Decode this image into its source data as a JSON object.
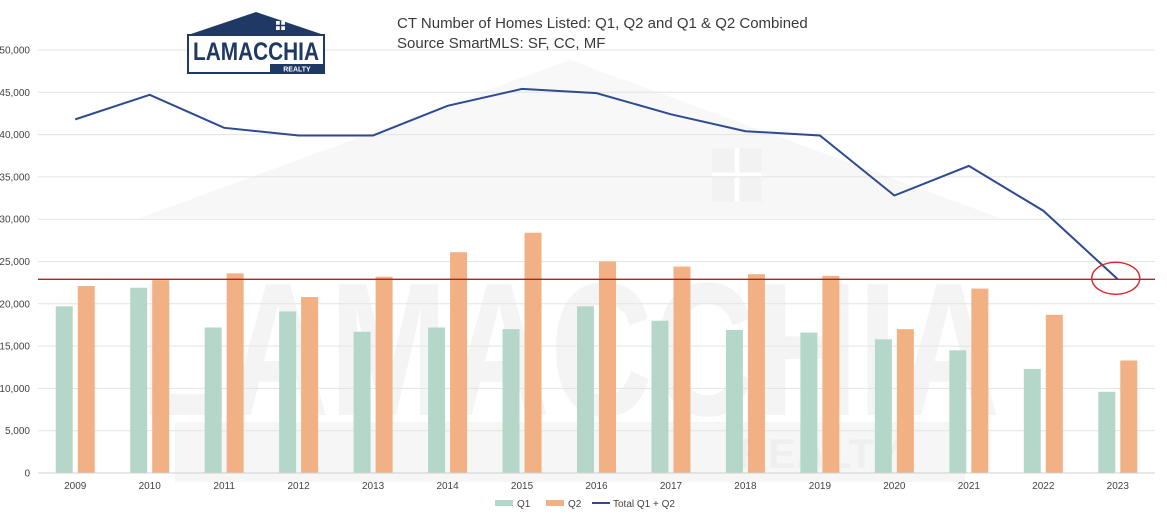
{
  "chart_data": {
    "type": "bar",
    "title": "CT Number of Homes Listed: Q1, Q2 and Q1 & Q2 Combined",
    "subtitle": "Source SmartMLS: SF, CC, MF",
    "categories": [
      "2009",
      "2010",
      "2011",
      "2012",
      "2013",
      "2014",
      "2015",
      "2016",
      "2017",
      "2018",
      "2019",
      "2020",
      "2021",
      "2022",
      "2023"
    ],
    "series": [
      {
        "name": "Q1",
        "type": "bar",
        "color": "#b5d7c9",
        "values": [
          19700,
          21900,
          17200,
          19100,
          16700,
          17200,
          17000,
          19700,
          18000,
          16900,
          16600,
          15800,
          14500,
          12300,
          9600
        ]
      },
      {
        "name": "Q2",
        "type": "bar",
        "color": "#f2b185",
        "values": [
          22100,
          22800,
          23600,
          20800,
          23200,
          26100,
          28400,
          25000,
          24400,
          23500,
          23300,
          17000,
          21800,
          18700,
          13300
        ]
      },
      {
        "name": "Total Q1 + Q2",
        "type": "line",
        "color": "#2e4b8f",
        "values": [
          41800,
          44700,
          40800,
          39900,
          39900,
          43400,
          45400,
          44900,
          42400,
          40400,
          39900,
          32800,
          36300,
          31000,
          22900
        ]
      }
    ],
    "ylim": [
      0,
      50000
    ],
    "yticks": [
      "0",
      "5,000",
      "10,000",
      "15,000",
      "20,000",
      "25,000",
      "30,000",
      "35,000",
      "40,000",
      "45,000",
      "50,000"
    ],
    "grid": true,
    "legend_position": "bottom",
    "reference_line": {
      "value": 22900,
      "color": "#b22222"
    },
    "highlight": {
      "category": "2023",
      "value": 22900,
      "color": "#d9262a"
    }
  },
  "logo": {
    "name": "LAMACCHIA",
    "sub": "REALTY",
    "color": "#1f3864"
  },
  "watermark": {
    "name": "LAMACCHIA",
    "sub": "REALTY"
  }
}
